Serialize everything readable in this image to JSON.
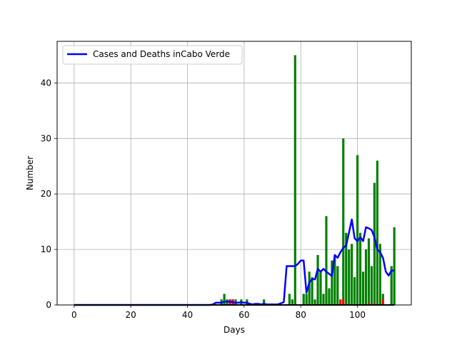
{
  "chart_data": {
    "type": "bar",
    "title": "",
    "xlabel": "Days",
    "ylabel": "Number",
    "xlim": [
      -6,
      119
    ],
    "ylim": [
      0,
      47.5
    ],
    "xticks": [
      0,
      20,
      40,
      60,
      80,
      100
    ],
    "yticks": [
      0,
      10,
      20,
      30,
      40
    ],
    "grid": true,
    "legend": {
      "position": "top-left",
      "entries": [
        {
          "label": "Cases and Deaths inCabo Verde",
          "color": "#0000ff"
        }
      ]
    },
    "colors": {
      "cases": "#008000",
      "deaths": "#ff0000",
      "average": "#0000ff",
      "grid": "#b0b0b0"
    },
    "series": [
      {
        "name": "Cases and Deaths inCabo Verde",
        "kind": "line",
        "x": [
          0,
          1,
          2,
          3,
          4,
          5,
          6,
          7,
          8,
          9,
          10,
          11,
          12,
          13,
          14,
          15,
          16,
          17,
          18,
          19,
          20,
          21,
          22,
          23,
          24,
          25,
          26,
          27,
          28,
          29,
          30,
          31,
          32,
          33,
          34,
          35,
          36,
          37,
          38,
          39,
          40,
          41,
          42,
          43,
          44,
          45,
          46,
          47,
          48,
          49,
          50,
          51,
          52,
          53,
          54,
          55,
          56,
          57,
          58,
          59,
          60,
          61,
          62,
          63,
          64,
          65,
          66,
          67,
          68,
          69,
          70,
          71,
          72,
          73,
          74,
          75,
          76,
          77,
          78,
          79,
          80,
          81,
          82,
          83,
          84,
          85,
          86,
          87,
          88,
          89,
          90,
          91,
          92,
          93,
          94,
          95,
          96,
          97,
          98,
          99,
          100,
          101,
          102,
          103,
          104,
          105,
          106,
          107,
          108,
          109,
          110,
          111,
          112,
          113
        ],
        "y": [
          0,
          0,
          0,
          0,
          0,
          0,
          0,
          0,
          0,
          0,
          0,
          0,
          0,
          0,
          0,
          0,
          0,
          0,
          0,
          0,
          0,
          0,
          0,
          0,
          0,
          0,
          0,
          0,
          0,
          0,
          0,
          0,
          0,
          0,
          0,
          0,
          0,
          0,
          0,
          0,
          0,
          0,
          0,
          0,
          0,
          0,
          0,
          0,
          0,
          0.1,
          0.4,
          0.4,
          0.4,
          0.6,
          0.6,
          0.6,
          0.5,
          0.4,
          0.4,
          0.5,
          0.4,
          0.4,
          0.2,
          0.1,
          0.2,
          0.2,
          0.1,
          0.2,
          0.1,
          0.1,
          0.1,
          0.1,
          0.1,
          0.3,
          0.5,
          7,
          7,
          7,
          7,
          7.4,
          8,
          8,
          2.2,
          4,
          4.7,
          4.6,
          6.5,
          6,
          6.5,
          6,
          5.6,
          5.2,
          9,
          8.5,
          9.5,
          10.3,
          10.7,
          13,
          15.4,
          12,
          11.5,
          12.2,
          11.5,
          14,
          13.8,
          13.5,
          12.2,
          10,
          9.5,
          8.5,
          6,
          5.3,
          6.2,
          6.2
        ]
      },
      {
        "name": "",
        "kind": "bar",
        "color": "#008000",
        "x": [
          52,
          53,
          54,
          55,
          56,
          57,
          59,
          61,
          67,
          76,
          77,
          78,
          80,
          81,
          82,
          83,
          84,
          85,
          86,
          87,
          88,
          89,
          90,
          91,
          92,
          93,
          94,
          95,
          96,
          97,
          98,
          99,
          100,
          101,
          102,
          103,
          104,
          105,
          106,
          107,
          108,
          109,
          110,
          111,
          112,
          113
        ],
        "y": [
          1,
          2,
          1,
          1,
          1,
          1,
          1,
          1,
          1,
          2,
          1,
          45,
          0,
          2,
          2,
          6,
          5,
          1,
          9,
          6,
          2,
          16,
          3,
          8,
          9,
          7,
          0,
          30,
          13,
          10,
          11,
          5,
          27,
          13,
          6,
          10,
          12,
          7,
          22,
          26,
          11,
          2,
          0,
          0,
          7,
          14
        ]
      },
      {
        "name": "",
        "kind": "bar",
        "color": "#ff0000",
        "x": [
          55,
          56,
          57,
          94,
          95,
          104,
          106,
          109
        ],
        "y": [
          1,
          1,
          0.5,
          1,
          1,
          0.4,
          0.3,
          1
        ]
      }
    ]
  }
}
